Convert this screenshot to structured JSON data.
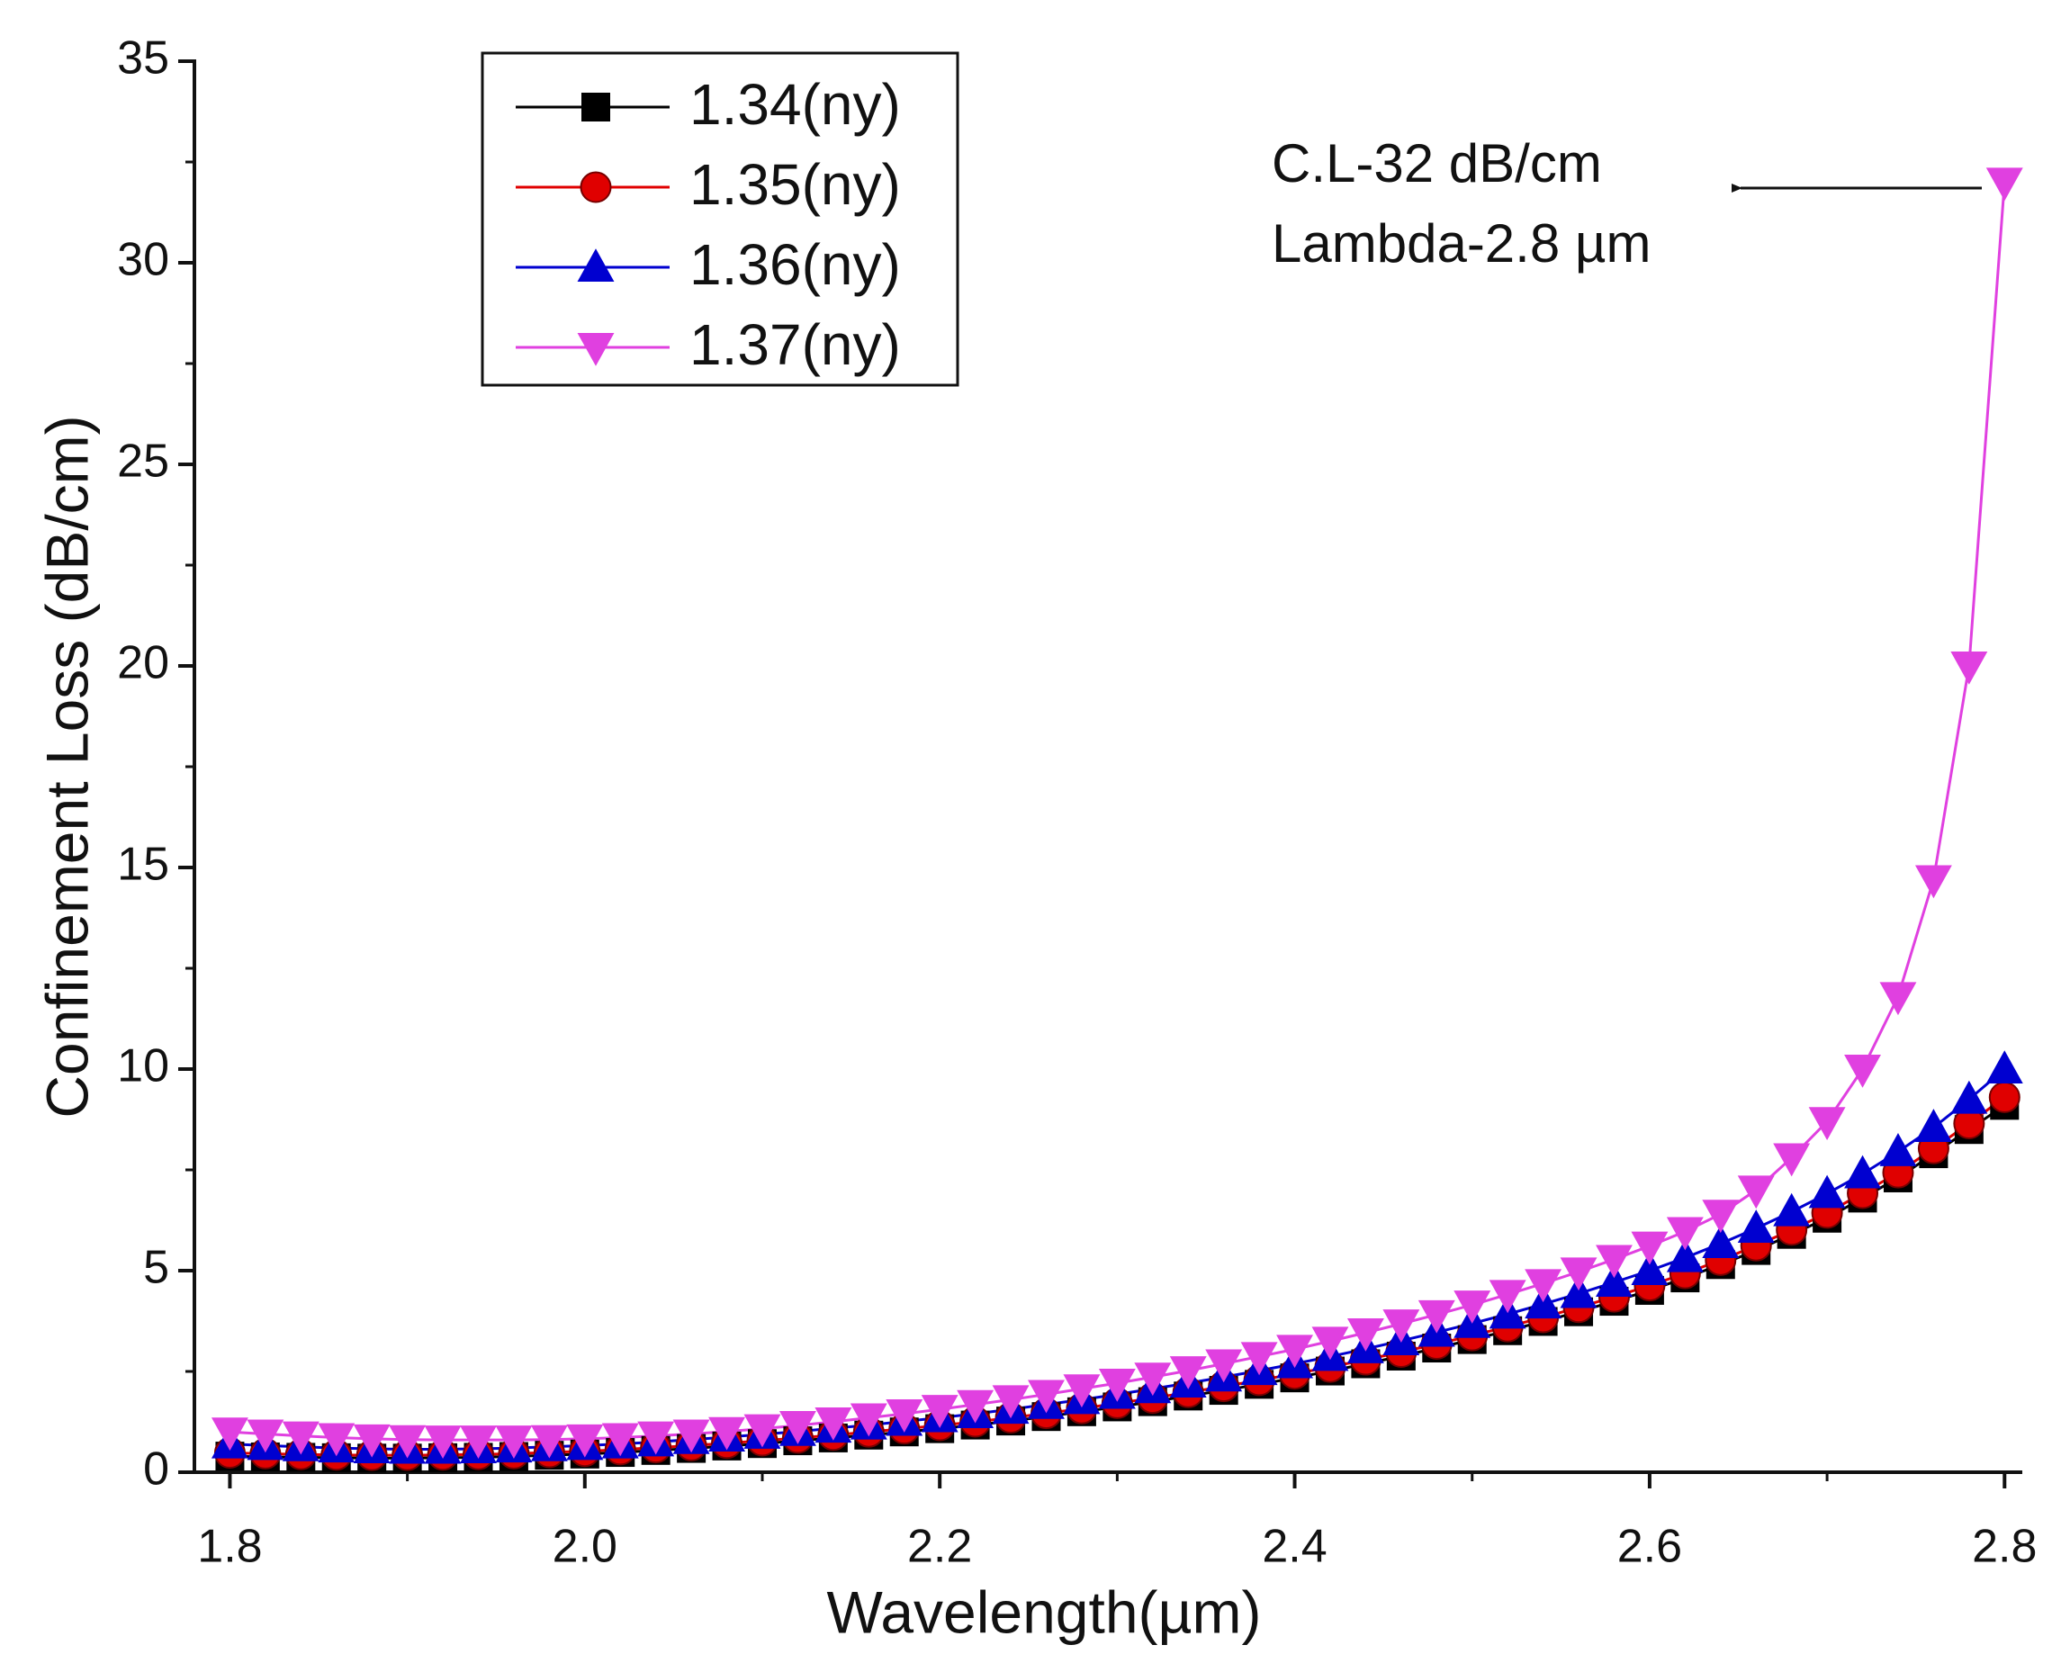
{
  "chart_data": {
    "type": "line",
    "xlabel": "Wavelength(µm)",
    "ylabel": "Confinement Loss (dB/cm)",
    "annotation": [
      "C.L-32 dB/cm",
      "Lambda-2.8 µm"
    ],
    "x": [
      1.8,
      1.82,
      1.84,
      1.86,
      1.88,
      1.9,
      1.92,
      1.94,
      1.96,
      1.98,
      2.0,
      2.02,
      2.04,
      2.06,
      2.08,
      2.1,
      2.12,
      2.14,
      2.16,
      2.18,
      2.2,
      2.22,
      2.24,
      2.26,
      2.28,
      2.3,
      2.32,
      2.34,
      2.36,
      2.38,
      2.4,
      2.42,
      2.44,
      2.46,
      2.48,
      2.5,
      2.52,
      2.54,
      2.56,
      2.58,
      2.6,
      2.62,
      2.64,
      2.66,
      2.68,
      2.7,
      2.72,
      2.74,
      2.76,
      2.78,
      2.8
    ],
    "series": [
      {
        "name": "1.34(ny)",
        "color": "#000000",
        "marker": "square",
        "values": [
          0.4,
          0.38,
          0.37,
          0.36,
          0.35,
          0.35,
          0.36,
          0.37,
          0.39,
          0.42,
          0.45,
          0.49,
          0.54,
          0.59,
          0.65,
          0.71,
          0.78,
          0.85,
          0.92,
          1.0,
          1.08,
          1.17,
          1.27,
          1.38,
          1.5,
          1.62,
          1.75,
          1.89,
          2.03,
          2.18,
          2.34,
          2.51,
          2.69,
          2.88,
          3.08,
          3.29,
          3.51,
          3.74,
          3.98,
          4.24,
          4.51,
          4.82,
          5.15,
          5.5,
          5.9,
          6.3,
          6.8,
          7.3,
          7.9,
          8.5,
          9.1
        ]
      },
      {
        "name": "1.35(ny)",
        "color": "#e00000",
        "marker": "circle",
        "values": [
          0.48,
          0.46,
          0.44,
          0.43,
          0.42,
          0.42,
          0.43,
          0.44,
          0.46,
          0.49,
          0.52,
          0.56,
          0.61,
          0.66,
          0.72,
          0.78,
          0.85,
          0.92,
          1.0,
          1.08,
          1.16,
          1.25,
          1.35,
          1.46,
          1.58,
          1.71,
          1.84,
          1.98,
          2.13,
          2.28,
          2.44,
          2.61,
          2.79,
          2.98,
          3.18,
          3.39,
          3.61,
          3.84,
          4.09,
          4.35,
          4.63,
          4.93,
          5.26,
          5.62,
          6.01,
          6.43,
          6.92,
          7.43,
          8.03,
          8.65,
          9.3
        ]
      },
      {
        "name": "1.36(ny)",
        "color": "#0000d0",
        "marker": "triangle-up",
        "values": [
          0.7,
          0.66,
          0.63,
          0.6,
          0.58,
          0.57,
          0.57,
          0.58,
          0.6,
          0.63,
          0.66,
          0.7,
          0.75,
          0.81,
          0.87,
          0.94,
          1.01,
          1.09,
          1.17,
          1.26,
          1.35,
          1.45,
          1.56,
          1.68,
          1.8,
          1.93,
          2.07,
          2.21,
          2.36,
          2.52,
          2.69,
          2.87,
          3.06,
          3.26,
          3.47,
          3.69,
          3.92,
          4.17,
          4.43,
          4.71,
          5.0,
          5.32,
          5.67,
          6.05,
          6.46,
          6.91,
          7.4,
          7.95,
          8.55,
          9.25,
          10.0
        ]
      },
      {
        "name": "1.37(ny)",
        "color": "#e040e0",
        "marker": "triangle-down",
        "values": [
          1.0,
          0.95,
          0.9,
          0.86,
          0.83,
          0.81,
          0.8,
          0.8,
          0.8,
          0.81,
          0.83,
          0.86,
          0.9,
          0.95,
          1.01,
          1.08,
          1.16,
          1.25,
          1.35,
          1.45,
          1.56,
          1.68,
          1.8,
          1.93,
          2.07,
          2.21,
          2.36,
          2.52,
          2.69,
          2.87,
          3.05,
          3.25,
          3.46,
          3.68,
          3.91,
          4.15,
          4.41,
          4.68,
          4.97,
          5.28,
          5.61,
          5.97,
          6.4,
          7.0,
          7.8,
          8.7,
          10.0,
          11.8,
          14.7,
          20.0,
          32.0
        ]
      }
    ],
    "xlim": [
      1.78,
      2.81
    ],
    "ylim": [
      0,
      35
    ],
    "xticks": [
      1.8,
      {
        "value": 2,
        "label": "2.0"
      },
      2.2,
      2.4,
      2.6,
      2.8
    ],
    "xminorticks": [
      1.9,
      2.1,
      2.3,
      2.5,
      2.7
    ],
    "yticks": [
      0,
      5,
      10,
      15,
      20,
      25,
      30,
      35
    ],
    "yminorticks": [
      2.5,
      7.5,
      12.5,
      17.5,
      22.5,
      27.5,
      32.5
    ],
    "legend": "upper left",
    "grid": false
  }
}
